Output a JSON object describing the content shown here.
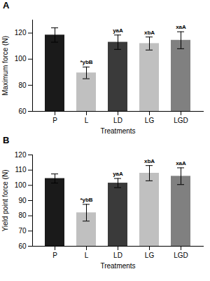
{
  "chart_data": [
    {
      "type": "bar",
      "title": "A",
      "categories": [
        "P",
        "L",
        "LD",
        "LG",
        "LGD"
      ],
      "values": [
        118.5,
        89.5,
        113.0,
        112.0,
        114.5
      ],
      "errors": [
        5.5,
        4.5,
        5.5,
        5.0,
        6.5
      ],
      "annotations": [
        null,
        "*ybB",
        "yaA",
        "xbA",
        "xaA"
      ],
      "colors": [
        "#1a1a1a",
        "#c0c0c0",
        "#3a3a3a",
        "#c0c0c0",
        "#808080"
      ],
      "xlabel": "Treatments",
      "ylabel": "Maximum force (N)",
      "ylim": [
        60,
        130
      ],
      "yticks": [
        60,
        80,
        100,
        120
      ],
      "grid": false
    },
    {
      "type": "bar",
      "title": "B",
      "categories": [
        "P",
        "L",
        "LD",
        "LG",
        "LGD"
      ],
      "values": [
        104.5,
        82.0,
        101.5,
        108.0,
        106.0
      ],
      "errors": [
        3.0,
        5.5,
        3.0,
        5.0,
        5.5
      ],
      "annotations": [
        null,
        "*ybB",
        "yaA",
        "xbA",
        "xaA"
      ],
      "colors": [
        "#1a1a1a",
        "#c0c0c0",
        "#3a3a3a",
        "#c0c0c0",
        "#808080"
      ],
      "xlabel": "Treatments",
      "ylabel": "Yield point force (N)",
      "ylim": [
        60,
        120
      ],
      "yticks": [
        60,
        70,
        80,
        90,
        100,
        110,
        120
      ],
      "grid": false
    }
  ]
}
